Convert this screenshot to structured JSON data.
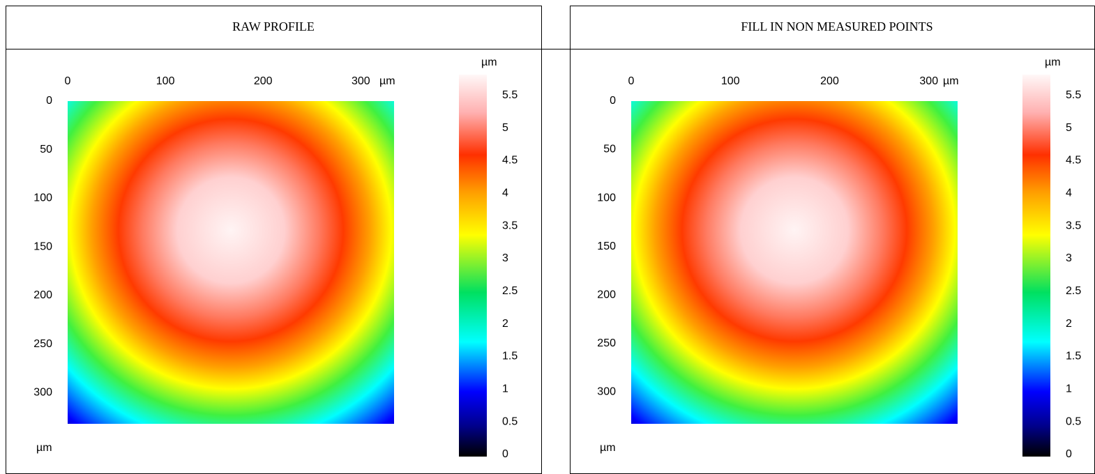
{
  "panels": [
    {
      "title": "RAW PROFILE",
      "xticks": [
        0,
        100,
        200,
        300
      ],
      "xlim": [
        0,
        334
      ],
      "xunit": "µm",
      "yticks": [
        0,
        50,
        100,
        150,
        200,
        250,
        300
      ],
      "ylim": [
        0,
        332
      ],
      "yunit": "µm",
      "colorbar_unit": "µm",
      "colorbar_ticks": [
        0,
        0.5,
        1,
        1.5,
        2,
        2.5,
        3,
        3.5,
        4,
        4.5,
        5,
        5.5
      ],
      "colorbar_lim": [
        0,
        5.85
      ]
    },
    {
      "title": "FILL IN NON MEASURED POINTS",
      "xticks": [
        0,
        100,
        200,
        300
      ],
      "xlim": [
        0,
        329
      ],
      "xunit": "µm",
      "yticks": [
        0,
        50,
        100,
        150,
        200,
        250,
        300
      ],
      "ylim": [
        0,
        333
      ],
      "yunit": "µm",
      "colorbar_unit": "µm",
      "colorbar_ticks": [
        0,
        0.5,
        1,
        1.5,
        2,
        2.5,
        3,
        3.5,
        4,
        4.5,
        5,
        5.5
      ],
      "colorbar_lim": [
        0,
        5.85
      ]
    }
  ]
}
